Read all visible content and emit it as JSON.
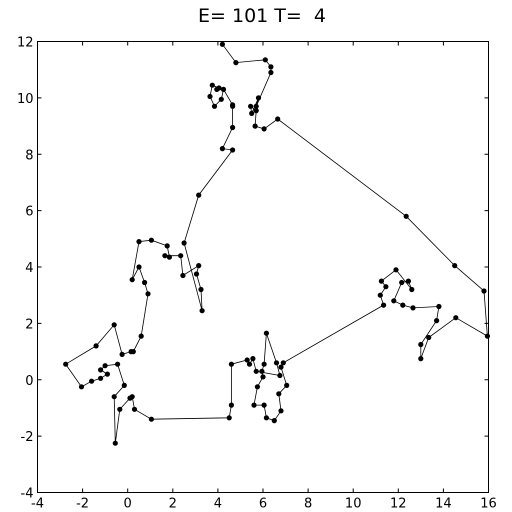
{
  "chart_data": {
    "type": "line",
    "title": "E= 101 T=  4",
    "xlabel": "",
    "ylabel": "",
    "xlim": [
      -4,
      16
    ],
    "ylim": [
      -4,
      12
    ],
    "grid": false,
    "xticks": [
      -4,
      -2,
      0,
      2,
      4,
      6,
      8,
      10,
      12,
      14,
      16
    ],
    "xtick_labels": [
      "-4",
      "-2",
      "0",
      "2",
      "4",
      "6",
      "8",
      "10",
      "12",
      "14",
      "16"
    ],
    "yticks": [
      -4,
      -2,
      0,
      2,
      4,
      6,
      8,
      10,
      12
    ],
    "ytick_labels": [
      "-4",
      "-2",
      "0",
      "2",
      "4",
      "6",
      "8",
      "10",
      "12"
    ],
    "series": [
      {
        "marker": "circle",
        "color": "#000000",
        "points": [
          [
            4.2,
            11.9
          ],
          [
            4.8,
            11.25
          ],
          [
            6.1,
            11.35
          ],
          [
            6.35,
            11.1
          ],
          [
            6.35,
            10.9
          ],
          [
            5.7,
            9.7
          ],
          [
            5.8,
            10.0
          ],
          [
            5.5,
            9.45
          ],
          [
            5.45,
            9.7
          ],
          [
            5.7,
            9.55
          ],
          [
            5.65,
            9.0
          ],
          [
            6.05,
            8.9
          ],
          [
            6.65,
            9.25
          ],
          [
            12.35,
            5.8
          ],
          [
            14.5,
            4.05
          ],
          [
            15.8,
            3.15
          ],
          [
            15.95,
            1.55
          ],
          [
            14.55,
            2.2
          ],
          [
            13.35,
            1.5
          ],
          [
            13.0,
            0.75
          ],
          [
            13.0,
            1.25
          ],
          [
            13.7,
            2.1
          ],
          [
            13.8,
            2.6
          ],
          [
            12.65,
            2.55
          ],
          [
            12.2,
            2.65
          ],
          [
            11.8,
            2.8
          ],
          [
            12.15,
            3.45
          ],
          [
            12.45,
            3.5
          ],
          [
            12.6,
            3.2
          ],
          [
            11.9,
            3.9
          ],
          [
            11.25,
            3.5
          ],
          [
            11.45,
            3.3
          ],
          [
            11.2,
            3.0
          ],
          [
            11.35,
            2.65
          ],
          [
            6.9,
            0.6
          ],
          [
            6.8,
            0.45
          ],
          [
            7.05,
            -0.2
          ],
          [
            6.7,
            -0.5
          ],
          [
            6.8,
            -1.1
          ],
          [
            6.5,
            -1.45
          ],
          [
            6.15,
            -1.35
          ],
          [
            6.05,
            -0.9
          ],
          [
            5.6,
            -0.9
          ],
          [
            5.75,
            -0.25
          ],
          [
            6.0,
            0.1
          ],
          [
            5.95,
            0.3
          ],
          [
            6.05,
            0.55
          ],
          [
            6.15,
            1.65
          ],
          [
            6.6,
            0.6
          ],
          [
            6.75,
            0.15
          ],
          [
            5.7,
            0.3
          ],
          [
            5.55,
            0.75
          ],
          [
            5.4,
            0.55
          ],
          [
            5.3,
            0.7
          ],
          [
            4.6,
            0.55
          ],
          [
            4.6,
            -0.9
          ],
          [
            4.5,
            -1.35
          ],
          [
            1.05,
            -1.4
          ],
          [
            0.3,
            -1.05
          ],
          [
            0.2,
            -0.6
          ],
          [
            0.1,
            -0.65
          ],
          [
            -0.35,
            -1.05
          ],
          [
            -0.55,
            -2.25
          ],
          [
            -0.6,
            -0.6
          ],
          [
            -0.15,
            -0.2
          ],
          [
            -0.45,
            0.55
          ],
          [
            -1.0,
            0.5
          ],
          [
            -1.2,
            0.35
          ],
          [
            -0.9,
            0.2
          ],
          [
            -1.2,
            0.05
          ],
          [
            -1.6,
            -0.05
          ],
          [
            -2.05,
            -0.25
          ],
          [
            -2.75,
            0.55
          ],
          [
            -1.4,
            1.2
          ],
          [
            -0.6,
            1.95
          ],
          [
            -0.25,
            0.9
          ],
          [
            0.15,
            1.0
          ],
          [
            0.25,
            1.0
          ],
          [
            0.6,
            1.55
          ],
          [
            0.9,
            3.05
          ],
          [
            0.75,
            3.45
          ],
          [
            0.5,
            4.0
          ],
          [
            0.2,
            3.55
          ],
          [
            0.5,
            4.9
          ],
          [
            1.05,
            4.95
          ],
          [
            1.75,
            4.75
          ],
          [
            1.85,
            4.35
          ],
          [
            1.65,
            4.4
          ],
          [
            2.35,
            4.4
          ],
          [
            2.45,
            3.7
          ],
          [
            3.15,
            4.05
          ],
          [
            3.05,
            3.75
          ],
          [
            3.25,
            3.2
          ],
          [
            3.3,
            2.45
          ],
          [
            2.5,
            4.85
          ],
          [
            3.15,
            6.55
          ],
          [
            4.65,
            8.15
          ],
          [
            4.2,
            8.2
          ],
          [
            4.65,
            8.95
          ],
          [
            4.65,
            9.7
          ],
          [
            4.65,
            9.75
          ],
          [
            4.25,
            10.3
          ],
          [
            4.15,
            9.95
          ],
          [
            3.85,
            9.7
          ],
          [
            3.65,
            10.05
          ],
          [
            3.75,
            10.45
          ],
          [
            4.05,
            10.35
          ],
          [
            3.95,
            10.3
          ]
        ]
      }
    ]
  }
}
